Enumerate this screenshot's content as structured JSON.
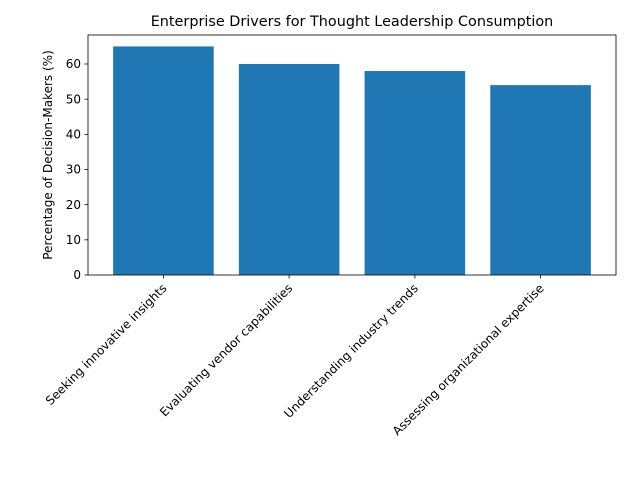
{
  "chart_data": {
    "type": "bar",
    "title": "Enterprise Drivers for Thought Leadership Consumption",
    "xlabel": "",
    "ylabel": "Percentage of Decision-Makers (%)",
    "categories": [
      "Seeking innovative insights",
      "Evaluating vendor capabilities",
      "Understanding industry trends",
      "Assessing organizational expertise"
    ],
    "values": [
      65,
      60,
      58,
      54
    ],
    "ylim": [
      0,
      68.25
    ],
    "yticks": [
      0,
      10,
      20,
      30,
      40,
      50,
      60
    ],
    "grid": false,
    "bar_color": "#1f77b4"
  }
}
